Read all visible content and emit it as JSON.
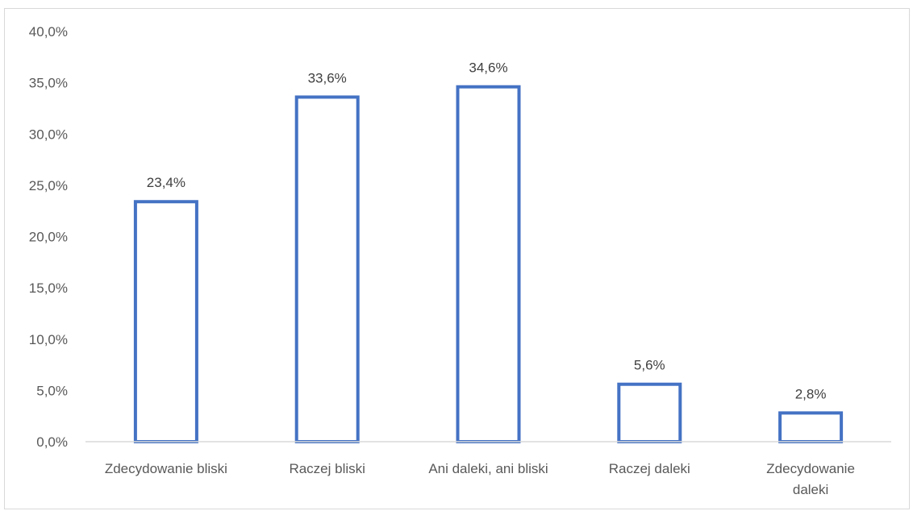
{
  "chart_data": {
    "type": "bar",
    "categories": [
      [
        "Zdecydowanie bliski"
      ],
      [
        "Raczej bliski"
      ],
      [
        "Ani daleki, ani bliski"
      ],
      [
        "Raczej daleki"
      ],
      [
        "Zdecydowanie",
        "daleki"
      ]
    ],
    "values": [
      23.4,
      33.6,
      34.6,
      5.6,
      2.8
    ],
    "data_labels": [
      "23,4%",
      "33,6%",
      "34,6%",
      "5,6%",
      "2,8%"
    ],
    "y_ticks": [
      0,
      5,
      10,
      15,
      20,
      25,
      30,
      35,
      40
    ],
    "y_tick_labels": [
      "0,0%",
      "5,0%",
      "10,0%",
      "15,0%",
      "20,0%",
      "25,0%",
      "30,0%",
      "35,0%",
      "40,0%"
    ],
    "ylim": [
      0,
      40
    ],
    "grid": false,
    "legend": "none",
    "bar_fill": "#ffffff",
    "bar_stroke": "#4472c4",
    "axis_color": "#d9d9d9"
  }
}
